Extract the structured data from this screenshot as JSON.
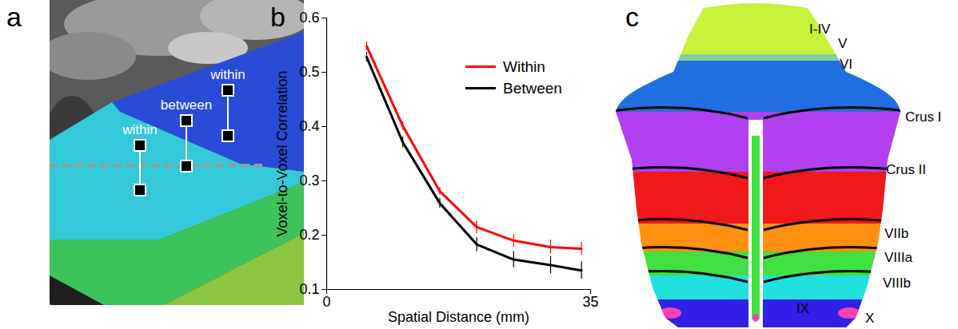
{
  "chart_data": {
    "type": "line",
    "x": [
      5.3,
      10.1,
      15,
      19.9,
      24.8,
      29.7,
      33.8
    ],
    "series": [
      {
        "name": "Within",
        "color": "#ff0000",
        "values": [
          0.548,
          0.401,
          0.281,
          0.215,
          0.19,
          0.178,
          0.175
        ],
        "errors": [
          0.008,
          0.008,
          0.007,
          0.012,
          0.012,
          0.013,
          0.012
        ]
      },
      {
        "name": "Between",
        "color": "#000000",
        "values": [
          0.528,
          0.371,
          0.259,
          0.183,
          0.155,
          0.145,
          0.135
        ],
        "errors": [
          0.009,
          0.01,
          0.009,
          0.013,
          0.015,
          0.016,
          0.016
        ]
      }
    ],
    "x_label": "Spatial Distance (mm)",
    "y_label": "Voxel-to-Voxel Correlation",
    "xlim": [
      0,
      35
    ],
    "xticks": [
      0,
      35
    ],
    "ylim": [
      0.1,
      0.6
    ],
    "yticks": [
      0.1,
      0.2,
      0.3,
      0.4,
      0.5,
      0.6
    ],
    "legend": "top-right"
  },
  "panels": {
    "letters": [
      "a",
      "b",
      "c"
    ],
    "a": {
      "labels": [
        "within",
        "between",
        "within"
      ],
      "colors": [
        "#2a4bd7",
        "#33c9d9",
        "#3cc35c",
        "#8cc63e"
      ]
    },
    "c": {
      "regions": [
        {
          "label": "I-IV",
          "color": "#c6f23a"
        },
        {
          "label": "V",
          "color": "#7fd0a0"
        },
        {
          "label": "VI",
          "color": "#1f6fe0"
        },
        {
          "label": "Crus I",
          "color": "#b040f0"
        },
        {
          "label": "Crus II",
          "color": "#f01818"
        },
        {
          "label": "VIIb",
          "color": "#ff9010"
        },
        {
          "label": "VIIIa",
          "color": "#40e040"
        },
        {
          "label": "VIIIb",
          "color": "#20e0e0"
        },
        {
          "label": "IX",
          "color": "#3020e8"
        },
        {
          "label": "X",
          "color": "#ff40b0"
        }
      ]
    }
  }
}
